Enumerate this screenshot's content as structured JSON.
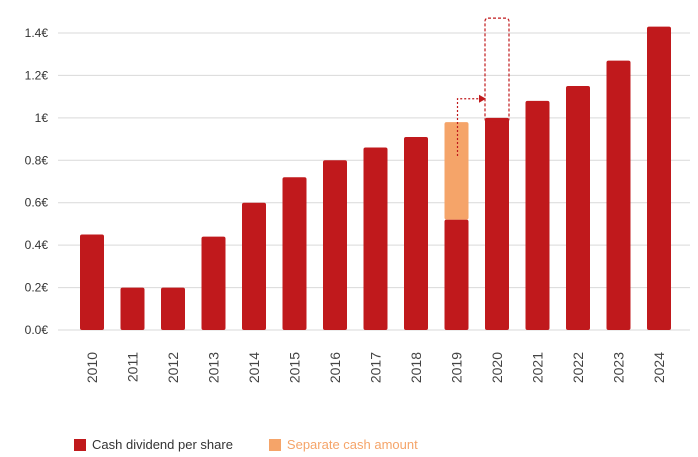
{
  "chart_data": {
    "type": "bar",
    "stacked": true,
    "categories": [
      "2010",
      "2011",
      "2012",
      "2013",
      "2014",
      "2015",
      "2016",
      "2017",
      "2018",
      "2019",
      "2020",
      "2021",
      "2022",
      "2023",
      "2024"
    ],
    "series": [
      {
        "name": "Cash dividend per share",
        "color": "#c0191c",
        "values": [
          0.45,
          0.2,
          0.2,
          0.44,
          0.6,
          0.72,
          0.8,
          0.86,
          0.91,
          0.52,
          1.0,
          1.08,
          1.15,
          1.27,
          1.43
        ]
      },
      {
        "name": "Separate cash amount",
        "color": "#f5a469",
        "values": [
          0,
          0,
          0,
          0,
          0,
          0,
          0,
          0,
          0,
          0.46,
          0,
          0,
          0,
          0,
          0
        ]
      }
    ],
    "y_ticks": [
      "0.0€",
      "0.2€",
      "0.4€",
      "0.6€",
      "0.8€",
      "1€",
      "1.2€",
      "1.4€"
    ],
    "ylim": [
      0,
      1.4
    ],
    "grid": true,
    "legend_position": "bottom-left",
    "annotation": {
      "type": "dashed arrow from 2019 separate cash amount to dashed outline on 2020 bar",
      "dashed_box_top_value": 1.47,
      "color": "#c0191c"
    }
  }
}
